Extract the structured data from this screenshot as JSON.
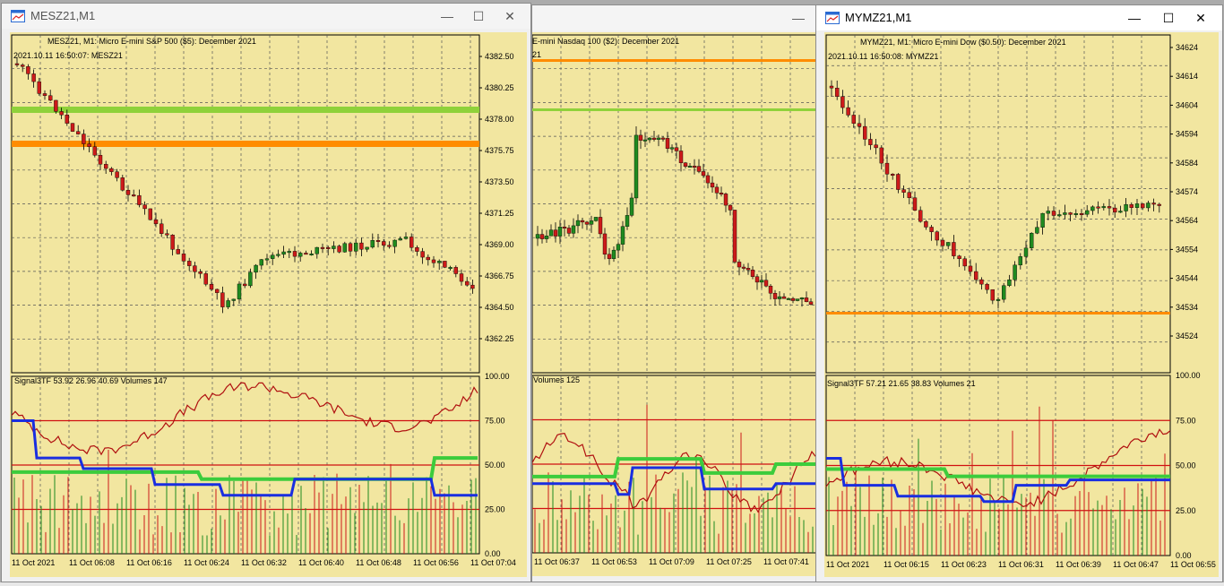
{
  "windows": {
    "mes": {
      "title": "MESZ21,M1",
      "header": "MESZ21, M1:  Micro E-mini S&P 500 ($5): December 2021",
      "timestamp": "2021.10.11 16:50:07: MESZ21",
      "indicator": "Signal3TF 53.92 26.96 40.69 Volumes 147",
      "price_axis": [
        "4382.50",
        "4380.25",
        "4378.00",
        "4375.75",
        "4373.50",
        "4371.25",
        "4369.00",
        "4366.75",
        "4364.50",
        "4362.25"
      ],
      "ind_axis": [
        "100.00",
        "75.00",
        "50.00",
        "25.00",
        "0.00"
      ],
      "time_axis": [
        "11 Oct 2021",
        "11 Oct 06:08",
        "11 Oct 06:16",
        "11 Oct 06:24",
        "11 Oct 06:32",
        "11 Oct 06:40",
        "11 Oct 06:48",
        "11 Oct 06:56",
        "11 Oct 07:04"
      ]
    },
    "mnq": {
      "header": "E-mini Nasdaq 100 ($2): December 2021",
      "timestamp": "21",
      "indicator": "Volumes 125",
      "time_axis": [
        "11 Oct 06:37",
        "11 Oct 06:53",
        "11 Oct 07:09",
        "11 Oct 07:25",
        "11 Oct 07:41"
      ]
    },
    "mym": {
      "title": "MYMZ21,M1",
      "header": "MYMZ21, M1:  Micro E-mini Dow ($0.50): December 2021",
      "timestamp": "2021.10.11 16:50:08: MYMZ21",
      "indicator": "Signal3TF 57.21 21.65 38.83 Volumes 21",
      "price_axis": [
        "34624",
        "34614",
        "34604",
        "34594",
        "34584",
        "34574",
        "34564",
        "34554",
        "34544",
        "34534",
        "34524"
      ],
      "ind_axis": [
        "100.00",
        "75.00",
        "50.00",
        "25.00",
        "0.00"
      ],
      "time_axis": [
        "11 Oct 2021",
        "11 Oct 06:15",
        "11 Oct 06:23",
        "11 Oct 06:31",
        "11 Oct 06:39",
        "11 Oct 06:47",
        "11 Oct 06:55"
      ]
    }
  },
  "window_buttons": {
    "minimize": "—",
    "maximize": "☐",
    "close": "✕"
  },
  "colors": {
    "chart_bg": "#f2e6a0",
    "bull": "#1f8a1f",
    "bear": "#cc1a1a",
    "level_green": "#8fd13a",
    "level_orange": "#ff8c00",
    "signal_blue": "#1a2ee0",
    "signal_green": "#3ccc3c",
    "signal_red": "#b01010"
  }
}
